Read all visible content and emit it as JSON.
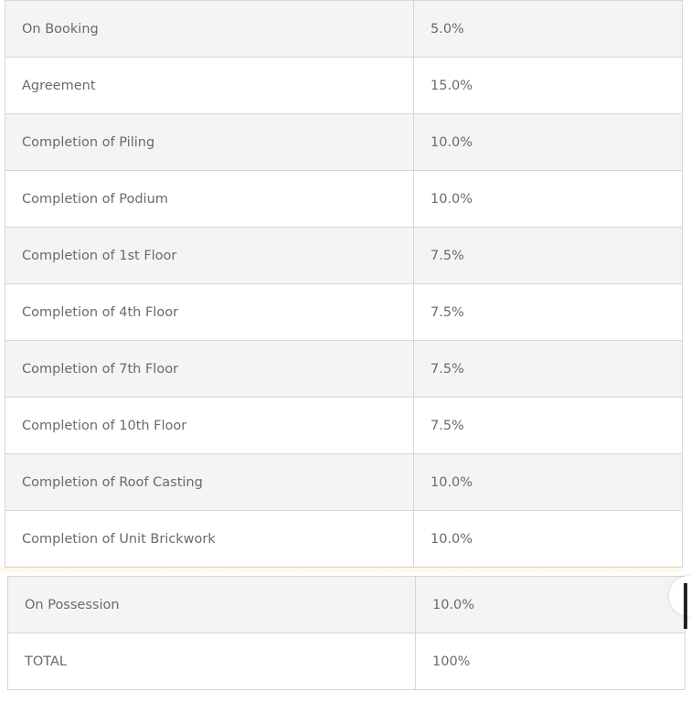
{
  "rows": [
    {
      "stage": "On Booking",
      "percent": "5.0%"
    },
    {
      "stage": "Agreement",
      "percent": "15.0%"
    },
    {
      "stage": "Completion of Piling",
      "percent": "10.0%"
    },
    {
      "stage": "Completion of Podium",
      "percent": "10.0%"
    },
    {
      "stage": "Completion of 1st Floor",
      "percent": "7.5%"
    },
    {
      "stage": "Completion of 4th Floor",
      "percent": "7.5%"
    },
    {
      "stage": "Completion of 7th Floor",
      "percent": "7.5%"
    },
    {
      "stage": "Completion of 10th Floor",
      "percent": "7.5%"
    },
    {
      "stage": "Completion of Roof Casting",
      "percent": "10.0%"
    },
    {
      "stage": "Completion of Unit Brickwork",
      "percent": "10.0%"
    },
    {
      "stage": "On Possession",
      "percent": "10.0%"
    },
    {
      "stage": "TOTAL",
      "percent": "100%"
    }
  ]
}
